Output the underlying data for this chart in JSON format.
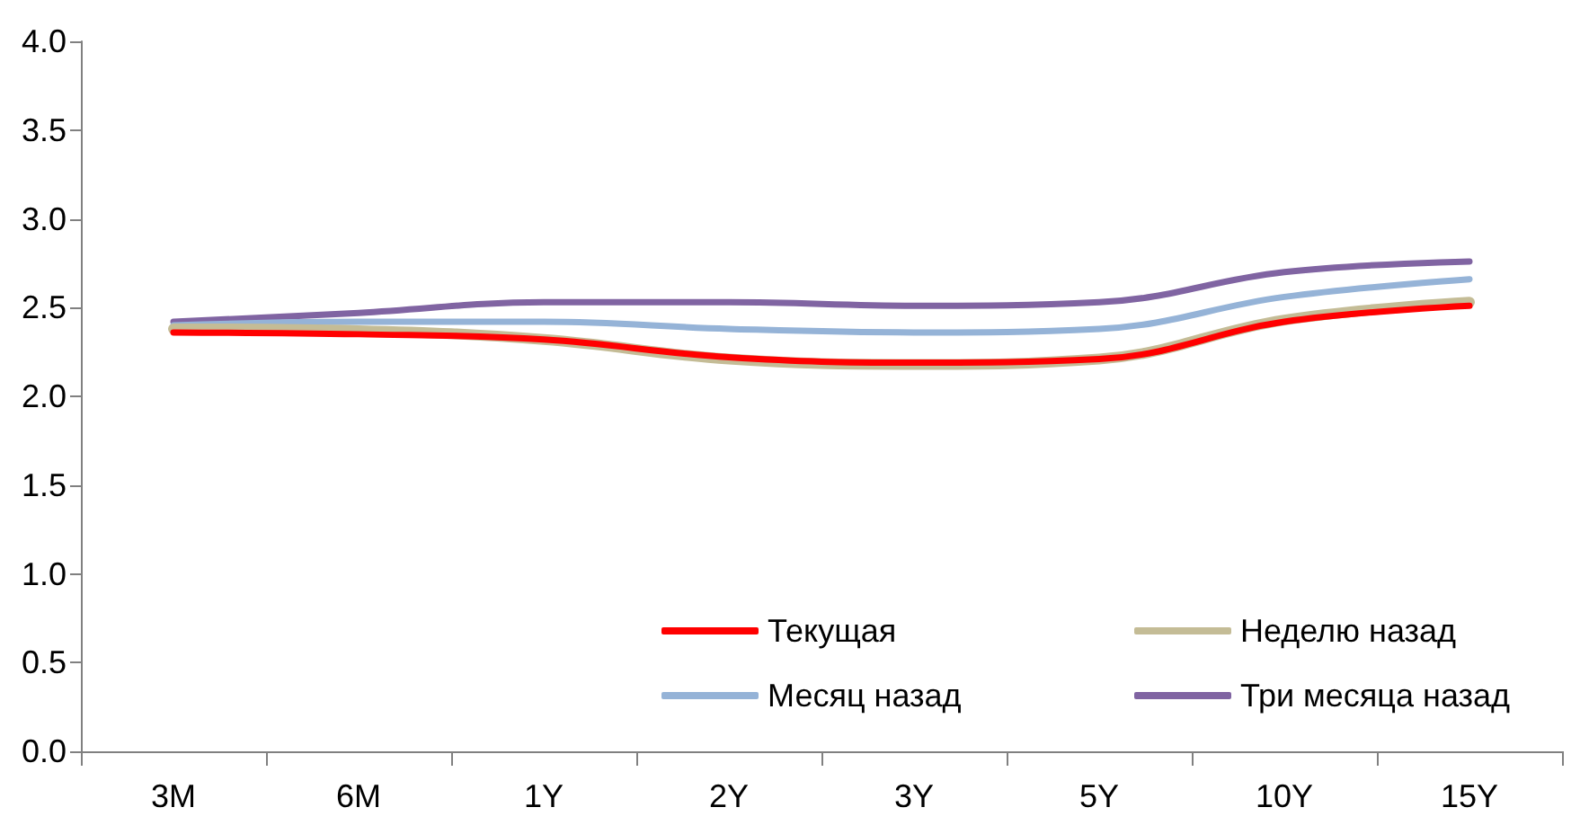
{
  "chart_data": {
    "type": "line",
    "categories": [
      "3M",
      "6M",
      "1Y",
      "2Y",
      "3Y",
      "5Y",
      "10Y",
      "15Y"
    ],
    "series": [
      {
        "name": "Текущая",
        "color": "#ff0000",
        "values": [
          2.36,
          2.35,
          2.32,
          2.22,
          2.19,
          2.21,
          2.42,
          2.51
        ]
      },
      {
        "name": "Неделю назад",
        "color": "#c4bc96",
        "values": [
          2.38,
          2.37,
          2.32,
          2.21,
          2.18,
          2.21,
          2.43,
          2.53
        ]
      },
      {
        "name": "Месяц назад",
        "color": "#95b3d7",
        "values": [
          2.4,
          2.42,
          2.42,
          2.38,
          2.36,
          2.38,
          2.56,
          2.66
        ]
      },
      {
        "name": "Три месяца назад",
        "color": "#8064a2",
        "values": [
          2.42,
          2.47,
          2.53,
          2.53,
          2.51,
          2.53,
          2.7,
          2.76
        ]
      }
    ],
    "ylim": [
      0,
      4
    ],
    "yticks": [
      {
        "value": 0,
        "label": "0.0"
      },
      {
        "value": 0.5,
        "label": "0.5"
      },
      {
        "value": 1,
        "label": "1.0"
      },
      {
        "value": 1.5,
        "label": "1.5"
      },
      {
        "value": 2,
        "label": "2.0"
      },
      {
        "value": 2.5,
        "label": "2.5"
      },
      {
        "value": 3,
        "label": "3.0"
      },
      {
        "value": 3.5,
        "label": "3.5"
      },
      {
        "value": 4,
        "label": "4.0"
      }
    ],
    "grid": false,
    "legend": "bottom right",
    "marker": "none",
    "line_style": "solid"
  }
}
